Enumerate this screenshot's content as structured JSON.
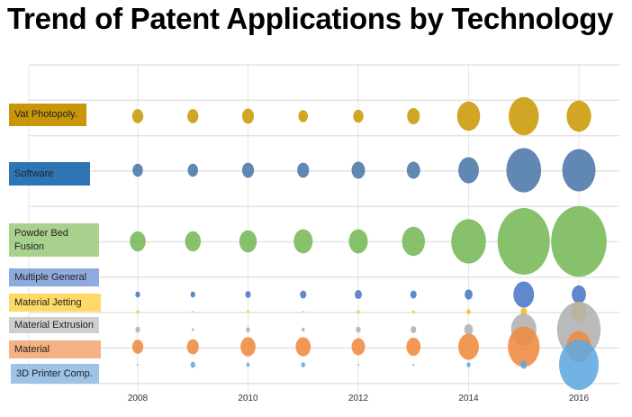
{
  "chart_data": {
    "type": "bubble",
    "title": "Trend of Patent Applications by Technology",
    "x": [
      2008,
      2009,
      2010,
      2011,
      2012,
      2013,
      2014,
      2015,
      2016
    ],
    "x_tick_labels": [
      "2008",
      "2010",
      "2012",
      "2014",
      "2016"
    ],
    "grid": true,
    "series": [
      {
        "name": "Vat Photopoly.",
        "color": "#c99a06",
        "label_color": "#c9960a",
        "sizes": [
          14,
          14,
          15,
          12,
          13,
          16,
          29,
          38,
          31
        ]
      },
      {
        "name": "Software",
        "color": "#4a77a8",
        "label_color": "#2e75b6",
        "sizes": [
          13,
          13,
          15,
          15,
          17,
          17,
          26,
          44,
          42
        ]
      },
      {
        "name": "Powder Bed Fusion",
        "color": "#78b857",
        "label_color": "#a9d18e",
        "sizes": [
          20,
          20,
          22,
          24,
          24,
          29,
          44,
          66,
          70
        ]
      },
      {
        "name": "Multiple General",
        "color": "#4a78c8",
        "label_color": "#8faadc",
        "sizes": [
          6,
          6,
          7,
          8,
          9,
          8,
          10,
          26,
          18
        ]
      },
      {
        "name": "Material Jetting",
        "color": "#f5c020",
        "label_color": "#ffd966",
        "sizes": [
          3,
          2,
          3,
          2,
          3,
          3,
          5,
          8,
          20
        ]
      },
      {
        "name": "Material Extrusion",
        "color": "#b0b0b0",
        "label_color": "#d0cece",
        "sizes": [
          6,
          3,
          5,
          4,
          6,
          7,
          11,
          32,
          55
        ]
      },
      {
        "name": "Material",
        "color": "#f08a40",
        "label_color": "#f4b183",
        "sizes": [
          14,
          15,
          19,
          19,
          17,
          18,
          26,
          40,
          31
        ]
      },
      {
        "name": "3D Printer Comp.",
        "color": "#5fa8e0",
        "label_color": "#9dc3e6",
        "sizes": [
          2,
          6,
          4,
          5,
          2,
          2,
          5,
          8,
          50
        ]
      }
    ]
  }
}
